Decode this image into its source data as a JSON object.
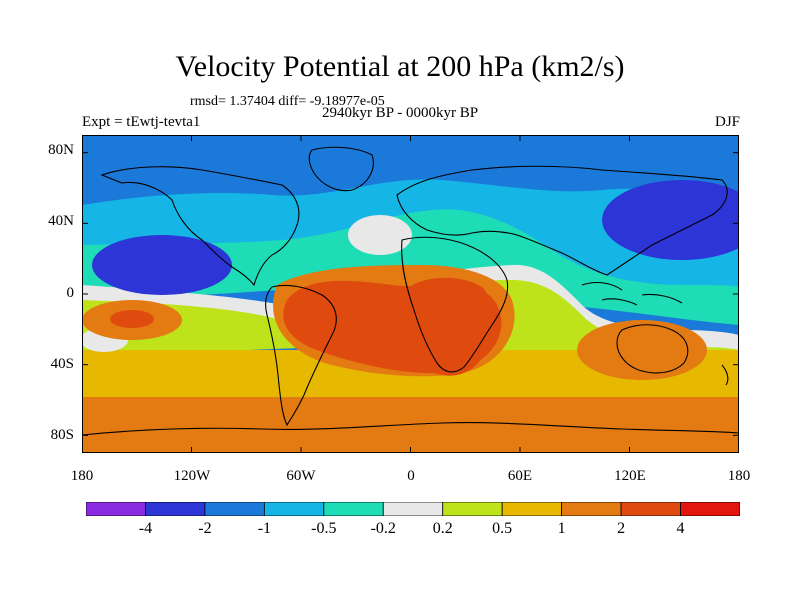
{
  "figure": {
    "title": "Velocity Potential at 200 hPa (km2/s)",
    "stats": "rmsd= 1.37404 diff= -9.18977e-05",
    "period": "2940kyr BP - 0000kyr BP",
    "experiment": "Expt = tEwtj-tevta1",
    "season": "DJF"
  },
  "map": {
    "projection": "cylindrical-equidistant",
    "lon_range": [
      -180,
      180
    ],
    "lat_range": [
      -90,
      90
    ],
    "x_ticks": [
      "180",
      "120W",
      "60W",
      "0",
      "60E",
      "120E",
      "180"
    ],
    "y_ticks": [
      "80N",
      "40N",
      "0",
      "40S",
      "80S"
    ],
    "x_tick_values": [
      -180,
      -120,
      -60,
      0,
      60,
      120,
      180
    ],
    "y_tick_values": [
      80,
      40,
      0,
      -40,
      -80
    ]
  },
  "colorbar": {
    "labels": [
      "-4",
      "-2",
      "-1",
      "-0.5",
      "-0.2",
      "0.2",
      "0.5",
      "1",
      "2",
      "4"
    ],
    "colors": [
      "#8a2be2",
      "#2d35d6",
      "#1b79d9",
      "#15b6e6",
      "#1edcb6",
      "#e8e8e8",
      "#bfe31a",
      "#e6b800",
      "#e37a12",
      "#df4a0e",
      "#e2160f"
    ]
  },
  "chart_data": {
    "type": "heatmap",
    "title": "Velocity Potential at 200 hPa (km2/s)",
    "units": "km2/s",
    "levels": [
      -4,
      -2,
      -1,
      -0.5,
      -0.2,
      0.2,
      0.5,
      1,
      2,
      4
    ],
    "features": [
      {
        "region": "Arctic and northern mid-latitudes",
        "category": "-2 to -1"
      },
      {
        "region": "North Pacific west of North America",
        "category": "-4 to -2"
      },
      {
        "region": "Northwest Pacific east of Asia",
        "category": "-4 to -2"
      },
      {
        "region": "Subtropical North Atlantic",
        "category": "-0.2 to 0.2"
      },
      {
        "region": "South America and South Atlantic",
        "category": "2 to 4"
      },
      {
        "region": "Southern Africa",
        "category": "2 to 4"
      },
      {
        "region": "Australia",
        "category": "1 to 2"
      },
      {
        "region": "Southern Ocean and Antarctica",
        "category": "1 to 2"
      },
      {
        "region": "Equatorial eastern Pacific",
        "category": "0.2 to 0.5"
      }
    ]
  }
}
